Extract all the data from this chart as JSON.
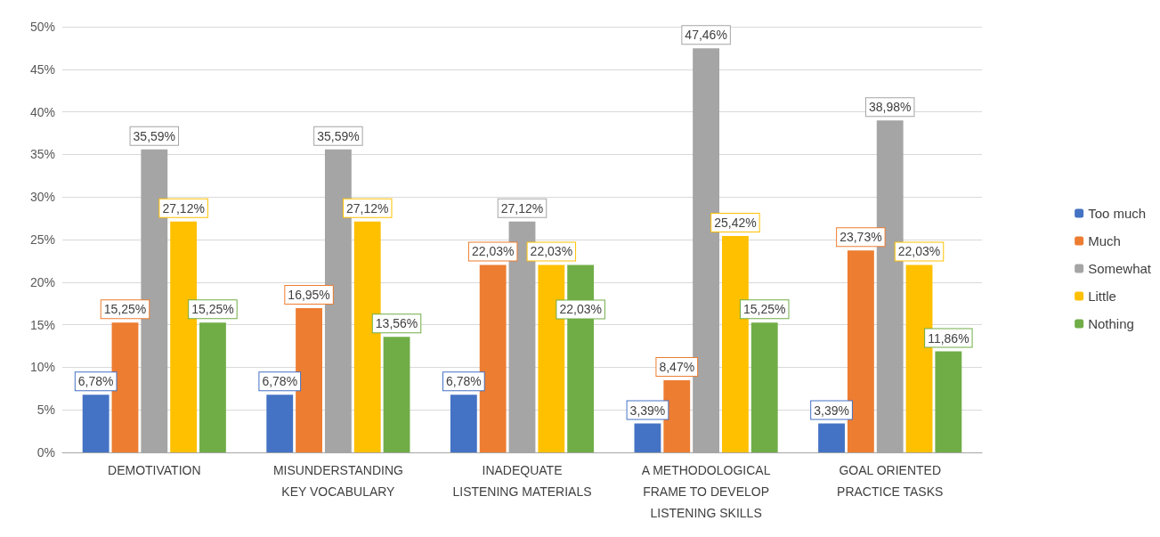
{
  "chart_data": {
    "type": "bar",
    "categories": [
      "DEMOTIVATION",
      "MISUNDERSTANDING\nKEY VOCABULARY",
      "INADEQUATE\nLISTENING MATERIALS",
      "A METHODOLOGICAL\nFRAME TO DEVELOP\nLISTENING SKILLS",
      "GOAL ORIENTED\nPRACTICE TASKS"
    ],
    "series": [
      {
        "name": "Too much",
        "color": "#4472c4",
        "values": [
          6.78,
          6.78,
          6.78,
          3.39,
          3.39
        ],
        "value_labels": [
          "6,78%",
          "6,78%",
          "6,78%",
          "3,39%",
          "3,39%"
        ]
      },
      {
        "name": "Much",
        "color": "#ed7d31",
        "values": [
          15.25,
          16.95,
          22.03,
          8.47,
          23.73
        ],
        "value_labels": [
          "15,25%",
          "16,95%",
          "22,03%",
          "8,47%",
          "23,73%"
        ]
      },
      {
        "name": "Somewhat",
        "color": "#a5a5a5",
        "values": [
          35.59,
          35.59,
          27.12,
          47.46,
          38.98
        ],
        "value_labels": [
          "35,59%",
          "35,59%",
          "27,12%",
          "47,46%",
          "38,98%"
        ]
      },
      {
        "name": "Little",
        "color": "#ffc000",
        "values": [
          27.12,
          27.12,
          22.03,
          25.42,
          22.03
        ],
        "value_labels": [
          "27,12%",
          "27,12%",
          "22,03%",
          "25,42%",
          "22,03%"
        ]
      },
      {
        "name": "Nothing",
        "color": "#70ad47",
        "values": [
          15.25,
          13.56,
          22.03,
          15.25,
          11.86
        ],
        "value_labels": [
          "15,25%",
          "13,56%",
          "22,03%",
          "15,25%",
          "11,86%"
        ]
      }
    ],
    "ylim": [
      0,
      50
    ],
    "yticks": [
      {
        "value": 0,
        "label": "0%"
      },
      {
        "value": 5,
        "label": "5%"
      },
      {
        "value": 10,
        "label": "10%"
      },
      {
        "value": 15,
        "label": "15%"
      },
      {
        "value": 20,
        "label": "20%"
      },
      {
        "value": 25,
        "label": "25%"
      },
      {
        "value": 30,
        "label": "30%"
      },
      {
        "value": 35,
        "label": "35%"
      },
      {
        "value": 40,
        "label": "40%"
      },
      {
        "value": 45,
        "label": "45%"
      },
      {
        "value": 50,
        "label": "50%"
      }
    ],
    "grid": "y",
    "legend": "right"
  }
}
